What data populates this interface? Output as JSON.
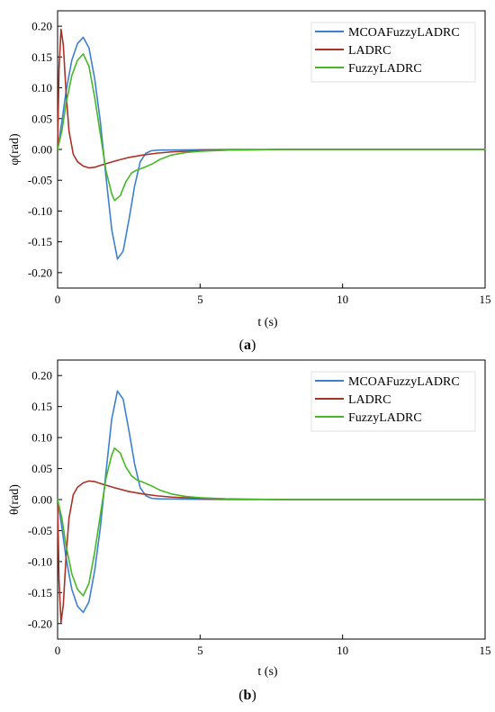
{
  "colors": {
    "MCOAFuzzyLADRC": "#3d7fd0",
    "LADRC": "#a83226",
    "FuzzyLADRC": "#44b825"
  },
  "chart_data": [
    {
      "type": "line",
      "panel_label": "(a)",
      "ylabel": "φ(rad)",
      "xlabel": "t (s)",
      "xlim": [
        0,
        15
      ],
      "ylim": [
        -0.225,
        0.225
      ],
      "xticks": [
        0,
        5,
        10,
        15
      ],
      "yticks": [
        0.2,
        0.15,
        0.1,
        0.05,
        0.0,
        -0.05,
        -0.1,
        -0.15,
        -0.2
      ],
      "ytick_labels": [
        "0.20",
        "0.15",
        "0.10",
        "0.05",
        "0.00",
        "-0.05",
        "-0.10",
        "-0.15",
        "-0.20"
      ],
      "legend_position": "top-right",
      "series": [
        {
          "name": "MCOAFuzzyLADRC",
          "x": [
            0,
            0.15,
            0.3,
            0.5,
            0.7,
            0.9,
            1.1,
            1.3,
            1.5,
            1.7,
            1.9,
            2.1,
            2.3,
            2.5,
            2.7,
            2.9,
            3.1,
            3.3,
            3.6,
            4.0,
            5.0,
            6.0,
            8.0,
            10.0,
            15.0
          ],
          "y": [
            0,
            0.045,
            0.095,
            0.145,
            0.172,
            0.182,
            0.165,
            0.115,
            0.045,
            -0.045,
            -0.13,
            -0.178,
            -0.165,
            -0.115,
            -0.06,
            -0.02,
            -0.006,
            -0.002,
            -0.001,
            -0.001,
            -0.0005,
            0,
            0,
            0,
            0
          ]
        },
        {
          "name": "LADRC",
          "x": [
            0,
            0.05,
            0.12,
            0.2,
            0.3,
            0.4,
            0.55,
            0.7,
            0.9,
            1.1,
            1.3,
            1.5,
            2.0,
            2.5,
            3.0,
            3.5,
            4.0,
            5.0,
            6.0,
            8.0,
            10.0,
            15.0
          ],
          "y": [
            0,
            0.13,
            0.195,
            0.17,
            0.09,
            0.03,
            -0.008,
            -0.02,
            -0.027,
            -0.03,
            -0.029,
            -0.026,
            -0.019,
            -0.013,
            -0.009,
            -0.006,
            -0.004,
            -0.002,
            -0.001,
            0,
            0,
            0
          ]
        },
        {
          "name": "FuzzyLADRC",
          "x": [
            0,
            0.15,
            0.3,
            0.5,
            0.7,
            0.9,
            1.1,
            1.3,
            1.5,
            1.7,
            1.9,
            2.0,
            2.2,
            2.4,
            2.6,
            2.8,
            3.0,
            3.3,
            3.6,
            4.0,
            4.5,
            5.0,
            6.0,
            8.0,
            10.0,
            15.0
          ],
          "y": [
            0,
            0.03,
            0.075,
            0.12,
            0.145,
            0.155,
            0.135,
            0.085,
            0.025,
            -0.035,
            -0.072,
            -0.083,
            -0.075,
            -0.052,
            -0.038,
            -0.033,
            -0.03,
            -0.024,
            -0.016,
            -0.009,
            -0.005,
            -0.003,
            -0.001,
            0,
            0,
            0
          ]
        }
      ]
    },
    {
      "type": "line",
      "panel_label": "(b)",
      "ylabel": "θ(rad)",
      "xlabel": "t (s)",
      "xlim": [
        0,
        15
      ],
      "ylim": [
        -0.225,
        0.225
      ],
      "xticks": [
        0,
        5,
        10,
        15
      ],
      "yticks": [
        0.2,
        0.15,
        0.1,
        0.05,
        0.0,
        -0.05,
        -0.1,
        -0.15,
        -0.2
      ],
      "ytick_labels": [
        "0.20",
        "0.15",
        "0.10",
        "0.05",
        "0.00",
        "-0.05",
        "-0.10",
        "-0.15",
        "-0.20"
      ],
      "legend_position": "top-right",
      "series": [
        {
          "name": "MCOAFuzzyLADRC",
          "x": [
            0,
            0.15,
            0.3,
            0.5,
            0.7,
            0.9,
            1.1,
            1.3,
            1.5,
            1.7,
            1.9,
            2.1,
            2.3,
            2.5,
            2.7,
            2.9,
            3.1,
            3.3,
            3.6,
            4.0,
            5.0,
            6.0,
            8.0,
            10.0,
            15.0
          ],
          "y": [
            0,
            -0.045,
            -0.095,
            -0.145,
            -0.172,
            -0.182,
            -0.165,
            -0.115,
            -0.045,
            0.045,
            0.13,
            0.175,
            0.162,
            0.112,
            0.058,
            0.019,
            0.006,
            0.002,
            0.001,
            0.001,
            0.0005,
            0,
            0,
            0,
            0
          ]
        },
        {
          "name": "LADRC",
          "x": [
            0,
            0.05,
            0.12,
            0.2,
            0.3,
            0.4,
            0.55,
            0.7,
            0.9,
            1.1,
            1.3,
            1.5,
            2.0,
            2.5,
            3.0,
            3.5,
            4.0,
            5.0,
            6.0,
            8.0,
            10.0,
            15.0
          ],
          "y": [
            0,
            -0.13,
            -0.198,
            -0.17,
            -0.09,
            -0.03,
            0.008,
            0.02,
            0.027,
            0.03,
            0.029,
            0.026,
            0.019,
            0.013,
            0.009,
            0.006,
            0.004,
            0.002,
            0.001,
            0,
            0,
            0
          ]
        },
        {
          "name": "FuzzyLADRC",
          "x": [
            0,
            0.15,
            0.3,
            0.5,
            0.7,
            0.9,
            1.1,
            1.3,
            1.5,
            1.7,
            1.9,
            2.0,
            2.2,
            2.4,
            2.6,
            2.8,
            3.0,
            3.3,
            3.6,
            4.0,
            4.5,
            5.0,
            6.0,
            8.0,
            10.0,
            15.0
          ],
          "y": [
            0,
            -0.03,
            -0.075,
            -0.12,
            -0.145,
            -0.155,
            -0.135,
            -0.085,
            -0.025,
            0.035,
            0.072,
            0.083,
            0.075,
            0.052,
            0.038,
            0.031,
            0.028,
            0.022,
            0.015,
            0.009,
            0.005,
            0.003,
            0.001,
            0,
            0,
            0
          ]
        }
      ]
    }
  ]
}
